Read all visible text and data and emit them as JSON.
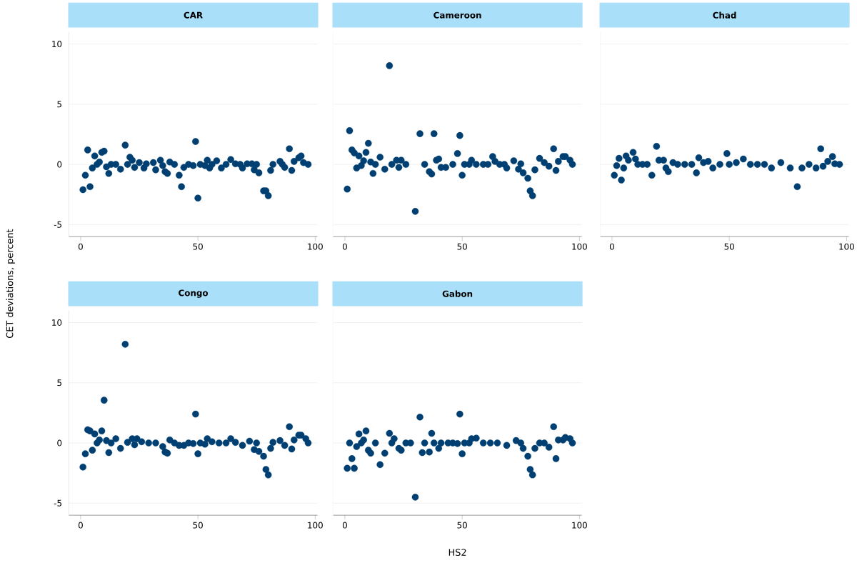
{
  "chart_data": [
    {
      "type": "scatter",
      "title": "CAR",
      "ylabel": "CET deviations, percent",
      "color": "#003f72",
      "marker": "circle",
      "grid": "y",
      "xlim": [
        -5,
        101
      ],
      "ylim": [
        -6,
        11
      ],
      "xticks": [
        0,
        50,
        100
      ],
      "yticks": [
        -5,
        0,
        5,
        10
      ],
      "x": [
        1,
        2,
        3,
        4,
        5,
        6,
        7,
        8,
        9,
        10,
        11,
        12,
        13,
        15,
        17,
        19,
        20,
        21,
        22,
        23,
        25,
        27,
        28,
        31,
        32,
        34,
        35,
        36,
        37,
        38,
        40,
        42,
        43,
        44,
        46,
        48,
        49,
        50,
        51,
        53,
        54,
        55,
        56,
        58,
        60,
        62,
        64,
        66,
        68,
        69,
        71,
        73,
        74,
        75,
        76,
        78,
        79,
        80,
        81,
        82,
        85,
        86,
        87,
        89,
        90,
        91,
        93,
        94,
        95,
        97
      ],
      "values": [
        -2.1,
        -0.9,
        1.2,
        -1.85,
        -0.3,
        0.7,
        0,
        0.2,
        1.0,
        1.1,
        -0.2,
        -0.75,
        0,
        0,
        -0.4,
        1.6,
        0,
        0.6,
        0.35,
        -0.25,
        0.15,
        -0.3,
        0.05,
        0.15,
        -0.45,
        0.35,
        -0.1,
        -0.6,
        -0.75,
        0.2,
        0,
        -0.9,
        -1.85,
        -0.25,
        0,
        -0.1,
        1.9,
        -2.8,
        0,
        -0.1,
        0.35,
        -0.3,
        0,
        0.3,
        -0.3,
        0,
        0.4,
        0.05,
        0,
        -0.3,
        0.05,
        0.05,
        -0.45,
        0,
        -0.7,
        -2.2,
        -2.2,
        -2.6,
        -0.5,
        0,
        0.25,
        0,
        -0.25,
        1.3,
        -0.5,
        0.25,
        0.55,
        0.7,
        0.15,
        0
      ]
    },
    {
      "type": "scatter",
      "title": "Cameroon",
      "color": "#003f72",
      "marker": "circle",
      "grid": "y",
      "tick_labels": "x",
      "xlim": [
        -5,
        101
      ],
      "ylim": [
        -6,
        11
      ],
      "xticks": [
        0,
        50,
        100
      ],
      "yticks": [
        -5,
        0,
        5,
        10
      ],
      "x": [
        1,
        2,
        3,
        4,
        5,
        6,
        7,
        8,
        9,
        10,
        11,
        12,
        13,
        15,
        17,
        19,
        20,
        22,
        23,
        24,
        26,
        30,
        32,
        34,
        36,
        37,
        38,
        39,
        40,
        41,
        43,
        46,
        48,
        49,
        50,
        51,
        53,
        54,
        56,
        59,
        61,
        63,
        64,
        66,
        68,
        69,
        72,
        74,
        75,
        76,
        78,
        79,
        80,
        81,
        83,
        85,
        87,
        89,
        90,
        91,
        93,
        94,
        96,
        97
      ],
      "values": [
        -2.05,
        2.8,
        1.2,
        0.95,
        -0.3,
        0.7,
        -0.1,
        0.3,
        1.0,
        1.75,
        0.2,
        -0.75,
        0,
        0.6,
        -0.4,
        8.2,
        0,
        0.35,
        -0.25,
        0.35,
        0,
        -3.9,
        2.55,
        0,
        -0.6,
        -0.8,
        2.55,
        0.35,
        0.45,
        -0.25,
        -0.25,
        0,
        0.9,
        2.4,
        -0.9,
        0,
        0,
        0.35,
        0,
        0,
        0,
        0.65,
        0.25,
        0,
        0,
        -0.3,
        0.3,
        -0.4,
        0.05,
        -0.7,
        -1.15,
        -2.2,
        -2.6,
        -0.45,
        0.5,
        0.15,
        -0.15,
        1.3,
        -0.5,
        0.25,
        0.65,
        0.65,
        0.35,
        0
      ]
    },
    {
      "type": "scatter",
      "title": "Chad",
      "color": "#003f72",
      "marker": "circle",
      "grid": "y",
      "tick_labels": "x",
      "xlim": [
        -5,
        101
      ],
      "ylim": [
        -6,
        11
      ],
      "xticks": [
        0,
        50,
        100
      ],
      "yticks": [
        -5,
        0,
        5,
        10
      ],
      "x": [
        1,
        2,
        3,
        4,
        5,
        6,
        7,
        9,
        10,
        11,
        13,
        15,
        17,
        19,
        20,
        22,
        23,
        24,
        26,
        28,
        31,
        34,
        36,
        37,
        39,
        41,
        43,
        46,
        49,
        50,
        53,
        56,
        59,
        62,
        65,
        68,
        72,
        76,
        79,
        81,
        84,
        87,
        89,
        90,
        92,
        94,
        95,
        97
      ],
      "values": [
        -0.9,
        -0.1,
        0.5,
        -1.3,
        -0.3,
        0.7,
        0.35,
        1.0,
        0.45,
        0,
        0,
        0,
        -0.9,
        1.5,
        0.35,
        0.35,
        -0.3,
        -0.6,
        0.15,
        0,
        0,
        0,
        -0.7,
        0.55,
        0.15,
        0.25,
        -0.3,
        0,
        0.9,
        0,
        0.15,
        0.45,
        0,
        0,
        0,
        -0.3,
        0.15,
        -0.3,
        -1.85,
        -0.3,
        0,
        -0.3,
        1.3,
        -0.15,
        0.25,
        0.65,
        0.05,
        0
      ]
    },
    {
      "type": "scatter",
      "title": "Congo",
      "color": "#003f72",
      "marker": "circle",
      "grid": "y",
      "xlim": [
        -5,
        101
      ],
      "ylim": [
        -6,
        11
      ],
      "xticks": [
        0,
        50,
        100
      ],
      "yticks": [
        -5,
        0,
        5,
        10
      ],
      "x": [
        1,
        2,
        3,
        4,
        5,
        6,
        7,
        8,
        9,
        10,
        11,
        12,
        13,
        15,
        17,
        19,
        20,
        22,
        23,
        24,
        26,
        29,
        32,
        35,
        36,
        37,
        38,
        40,
        42,
        44,
        46,
        48,
        49,
        50,
        51,
        53,
        54,
        56,
        59,
        62,
        64,
        66,
        69,
        72,
        74,
        75,
        76,
        78,
        79,
        80,
        81,
        82,
        85,
        87,
        89,
        90,
        91,
        93,
        94,
        96,
        97
      ],
      "values": [
        -2.0,
        -0.9,
        1.1,
        1.0,
        -0.6,
        0.75,
        0,
        0.25,
        1.0,
        3.55,
        0.2,
        -0.8,
        0,
        0.35,
        -0.45,
        8.2,
        0.05,
        0.35,
        -0.15,
        0.35,
        0.1,
        0,
        0,
        -0.3,
        -0.75,
        -0.85,
        0.25,
        0,
        -0.2,
        -0.2,
        0,
        -0.05,
        2.4,
        -0.9,
        0,
        -0.1,
        0.35,
        0.1,
        0,
        0,
        0.35,
        0.05,
        -0.2,
        0.15,
        -0.55,
        0,
        -0.7,
        -1.1,
        -2.2,
        -2.65,
        -0.45,
        0.05,
        0.2,
        -0.2,
        1.35,
        -0.5,
        0.25,
        0.65,
        0.65,
        0.35,
        0
      ]
    },
    {
      "type": "scatter",
      "title": "Gabon",
      "xlabel": "HS2",
      "color": "#003f72",
      "marker": "circle",
      "grid": "y",
      "tick_labels": "x",
      "xlim": [
        -5,
        101
      ],
      "ylim": [
        -6,
        11
      ],
      "xticks": [
        0,
        50,
        100
      ],
      "yticks": [
        -5,
        0,
        5,
        10
      ],
      "x": [
        1,
        2,
        3,
        4,
        5,
        6,
        7,
        8,
        9,
        10,
        11,
        13,
        15,
        17,
        19,
        20,
        21,
        23,
        24,
        26,
        28,
        30,
        32,
        33,
        34,
        36,
        37,
        38,
        40,
        41,
        44,
        46,
        48,
        49,
        50,
        51,
        53,
        54,
        56,
        59,
        62,
        65,
        69,
        73,
        75,
        76,
        78,
        79,
        80,
        81,
        83,
        85,
        87,
        89,
        90,
        91,
        93,
        94,
        96,
        97
      ],
      "values": [
        -2.1,
        0,
        -1.3,
        -2.1,
        -0.3,
        0.75,
        0,
        0.25,
        1.0,
        -0.6,
        -0.85,
        0,
        -1.8,
        -0.85,
        0.8,
        0,
        0.35,
        -0.45,
        -0.6,
        0,
        0,
        -4.5,
        2.15,
        -0.8,
        0,
        -0.75,
        0.8,
        0,
        -0.45,
        0,
        0,
        0,
        -0.05,
        2.4,
        -0.9,
        0,
        0,
        0.35,
        0.4,
        0,
        0,
        0,
        -0.2,
        0.2,
        0,
        -0.45,
        -1.1,
        -2.2,
        -2.65,
        -0.45,
        0,
        0,
        -0.35,
        1.35,
        -1.3,
        0.25,
        0.25,
        0.45,
        0.35,
        0
      ]
    }
  ]
}
